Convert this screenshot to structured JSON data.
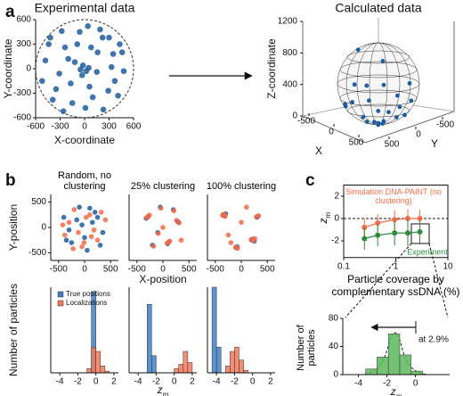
{
  "panel_labels": [
    "a",
    "b",
    "c"
  ],
  "chart_data": [
    {
      "type": "scatter",
      "title": "Experimental data",
      "xlabel": "X-coordinate",
      "ylabel": "Y-coordinate",
      "xlim": [
        -600,
        600
      ],
      "ylim": [
        -600,
        600
      ],
      "xticks": [
        -600,
        -300,
        0,
        300,
        600
      ],
      "yticks": [
        -600,
        -300,
        0,
        300,
        600
      ],
      "color": "#1f5d9c",
      "x": [
        -420,
        -350,
        -280,
        -200,
        -150,
        -90,
        -30,
        40,
        100,
        160,
        230,
        300,
        370,
        430,
        480,
        -480,
        -390,
        -310,
        -240,
        -170,
        -60,
        10,
        80,
        150,
        220,
        290,
        350,
        410,
        -520,
        -440,
        -260,
        -120,
        60,
        190,
        330,
        460,
        -20,
        20,
        -50,
        50
      ],
      "y": [
        380,
        -250,
        460,
        120,
        -420,
        300,
        -80,
        520,
        -350,
        200,
        -500,
        380,
        -150,
        300,
        -30,
        100,
        -380,
        -60,
        260,
        -180,
        450,
        -480,
        260,
        -40,
        380,
        -270,
        180,
        -330,
        -150,
        300,
        -520,
        80,
        -220,
        480,
        20,
        200,
        40,
        -30,
        -10,
        10
      ]
    },
    {
      "type": "scatter3d",
      "title": "Calculated data",
      "xlabel": "X",
      "ylabel": "Y",
      "zlabel": "Z-coordinate",
      "xticks": [
        -500,
        0,
        500
      ],
      "yticks": [
        -500,
        0,
        500
      ],
      "zticks": [
        0,
        400,
        800,
        1200
      ],
      "zlim": [
        0,
        1200
      ],
      "color": "#1f5d9c",
      "x": [
        0,
        -200,
        150,
        300,
        -350,
        -400,
        420,
        200,
        -100,
        480,
        -480,
        0,
        100,
        -300,
        350,
        -250,
        250,
        -450,
        440,
        50,
        -60,
        20,
        250,
        -300
      ],
      "y": [
        0,
        100,
        -200,
        200,
        -150,
        250,
        -100,
        400,
        -450,
        50,
        0,
        490,
        -490,
        -380,
        330,
        380,
        -380,
        -200,
        220,
        50,
        20,
        -80,
        150,
        100
      ],
      "z": [
        0,
        50,
        60,
        130,
        150,
        200,
        190,
        180,
        200,
        350,
        360,
        400,
        400,
        300,
        340,
        250,
        250,
        300,
        320,
        5,
        4,
        7,
        900,
        880
      ]
    },
    {
      "type": "scatter",
      "title": "Random, no clustering",
      "ylabel": "Y-position",
      "xlim": [
        -650,
        650
      ],
      "ylim": [
        -650,
        650
      ],
      "xticks": [
        -500,
        0,
        500
      ],
      "yticks": [
        -500,
        0,
        500
      ],
      "series": [
        {
          "color": "#1f5d9c",
          "x": [
            -400,
            -250,
            -100,
            50,
            200,
            350,
            -300,
            -150,
            0,
            150,
            300,
            -350,
            -50,
            100,
            250
          ],
          "y": [
            200,
            -300,
            400,
            -450,
            300,
            -100,
            -50,
            150,
            -200,
            100,
            -350,
            -250,
            50,
            380,
            200
          ]
        },
        {
          "color": "#f26b4a",
          "x": [
            -380,
            -200,
            -50,
            100,
            250,
            400,
            -300,
            -120,
            30,
            180,
            320,
            -420,
            -10,
            130,
            -220
          ],
          "y": [
            -150,
            350,
            -380,
            250,
            -250,
            150,
            100,
            -100,
            200,
            -50,
            300,
            50,
            -300,
            -180,
            -420
          ]
        }
      ]
    },
    {
      "type": "scatter",
      "title": "25% clustering",
      "xlabel": "X-position",
      "xlim": [
        -650,
        650
      ],
      "ylim": [
        -650,
        650
      ],
      "xticks": [
        -500,
        0,
        500
      ],
      "series": [
        {
          "color": "#1f5d9c",
          "x": [
            -300,
            -280,
            -320,
            100,
            120,
            90,
            -50,
            300,
            280,
            -100,
            200,
            -200
          ],
          "y": [
            200,
            220,
            180,
            -300,
            -280,
            -320,
            400,
            100,
            120,
            -100,
            350,
            -350
          ]
        },
        {
          "color": "#f26b4a",
          "x": [
            -290,
            -310,
            -260,
            110,
            80,
            130,
            -40,
            310,
            260,
            -90,
            210,
            -180,
            0,
            350
          ],
          "y": [
            210,
            190,
            240,
            -290,
            -310,
            -270,
            380,
            90,
            140,
            -120,
            330,
            -370,
            0,
            -250
          ]
        }
      ]
    },
    {
      "type": "scatter",
      "title": "100% clustering",
      "xlim": [
        -650,
        650
      ],
      "ylim": [
        -650,
        650
      ],
      "xticks": [
        -500,
        0,
        500
      ],
      "series": [
        {
          "color": "#1f5d9c",
          "x": [
            -350,
            -330,
            -300,
            200,
            220,
            250,
            -100,
            -80,
            300,
            320
          ],
          "y": [
            250,
            230,
            270,
            -250,
            -230,
            -270,
            -400,
            -380,
            200,
            220
          ]
        },
        {
          "color": "#f26b4a",
          "x": [
            -360,
            -320,
            -310,
            190,
            230,
            260,
            -110,
            -70,
            290,
            330,
            100,
            -250,
            -200,
            0
          ],
          "y": [
            240,
            260,
            220,
            -240,
            -260,
            -220,
            -390,
            -410,
            210,
            230,
            400,
            -150,
            -300,
            100
          ]
        }
      ]
    },
    {
      "type": "histogram",
      "ylabel": "Number of particles",
      "xlim": [
        -5,
        2.5
      ],
      "ylim": [
        0,
        100
      ],
      "xticks": [
        -4,
        -2,
        0,
        2
      ],
      "bins": [
        -5,
        -4.5,
        -4,
        -3.5,
        -3,
        -2.5,
        -2,
        -1.5,
        -1,
        -0.5,
        0,
        0.5,
        1,
        1.5,
        2,
        2.5
      ],
      "series": [
        {
          "name": "True positions",
          "color": "#3f7fc4",
          "values": [
            0,
            0,
            0,
            0,
            0,
            0,
            0,
            0,
            0,
            95,
            0,
            0,
            0,
            0,
            0
          ]
        },
        {
          "name": "Localizations",
          "color": "#f2795a",
          "values": [
            0,
            0,
            0,
            0,
            0,
            0,
            0,
            0,
            5,
            30,
            25,
            8,
            2,
            0,
            0
          ]
        }
      ]
    },
    {
      "type": "histogram",
      "xlabel": "z",
      "xlabel_sub": "m",
      "xlim": [
        -5,
        2.5
      ],
      "ylim": [
        0,
        100
      ],
      "xticks": [
        -4,
        -2,
        0,
        2
      ],
      "bins": [
        -5,
        -4.5,
        -4,
        -3.5,
        -3,
        -2.5,
        -2,
        -1.5,
        -1,
        -0.5,
        0,
        0.5,
        1,
        1.5,
        2,
        2.5
      ],
      "series": [
        {
          "color": "#3f7fc4",
          "values": [
            0,
            0,
            0,
            0,
            80,
            20,
            0,
            0,
            0,
            0,
            0,
            0,
            0,
            0,
            0
          ]
        },
        {
          "color": "#f2795a",
          "values": [
            0,
            0,
            0,
            0,
            0,
            0,
            0,
            0,
            0,
            0,
            5,
            10,
            25,
            12,
            0
          ]
        }
      ]
    },
    {
      "type": "histogram",
      "xlim": [
        -5,
        2.5
      ],
      "ylim": [
        0,
        100
      ],
      "xticks": [
        -4,
        -2,
        0,
        2
      ],
      "bins": [
        -5,
        -4.5,
        -4,
        -3.5,
        -3,
        -2.5,
        -2,
        -1.5,
        -1,
        -0.5,
        0,
        0.5,
        1,
        1.5,
        2,
        2.5
      ],
      "series": [
        {
          "color": "#3f7fc4",
          "values": [
            0,
            100,
            30,
            0,
            0,
            0,
            0,
            0,
            0,
            0,
            0,
            0,
            0,
            0,
            0
          ]
        },
        {
          "color": "#f2795a",
          "values": [
            0,
            0,
            0,
            0,
            8,
            25,
            30,
            15,
            3,
            0,
            0,
            0,
            0,
            0,
            0
          ]
        }
      ]
    },
    {
      "type": "line",
      "xlog": true,
      "xlim": [
        0.1,
        10
      ],
      "ylim": [
        -3.5,
        3
      ],
      "xticks": [
        0.1,
        1,
        10
      ],
      "yticks": [
        -2,
        0,
        2
      ],
      "ylabel": "z",
      "ylabel_sub": "m",
      "xlabel": "Particle coverage by complementary ssDNA (%)",
      "hline": 0,
      "x": [
        0.25,
        0.45,
        0.95,
        1.7,
        2.9
      ],
      "series": [
        {
          "name": "Simulation DNA-PAINT (no clustering)",
          "color": "#f26b4a",
          "values": [
            -0.8,
            -0.4,
            -0.1,
            0,
            0
          ],
          "errors": [
            0.8,
            0.8,
            0.8,
            0.8,
            0.8
          ]
        },
        {
          "name": "Experiment",
          "color": "#2e8b3e",
          "values": [
            -1.8,
            -1.5,
            -1.3,
            -1.3,
            -1.2
          ],
          "errors": [
            1.0,
            1.0,
            1.1,
            1.2,
            1.0
          ]
        }
      ]
    },
    {
      "type": "histogram",
      "ylabel": "Number of particles",
      "xlabel": "z",
      "xlabel_sub": "m",
      "annotation": "at 2.9%",
      "xlim": [
        -5.1,
        2.4
      ],
      "ylim": [
        0,
        80
      ],
      "xticks": [
        -4,
        -2,
        0
      ],
      "yticks": [
        0,
        40,
        80
      ],
      "color": "#5cb85c",
      "bins": [
        -3.5,
        -2.7,
        -1.9,
        -1.1,
        -0.3,
        0.5
      ],
      "values": [
        8,
        25,
        58,
        28,
        5
      ]
    }
  ]
}
